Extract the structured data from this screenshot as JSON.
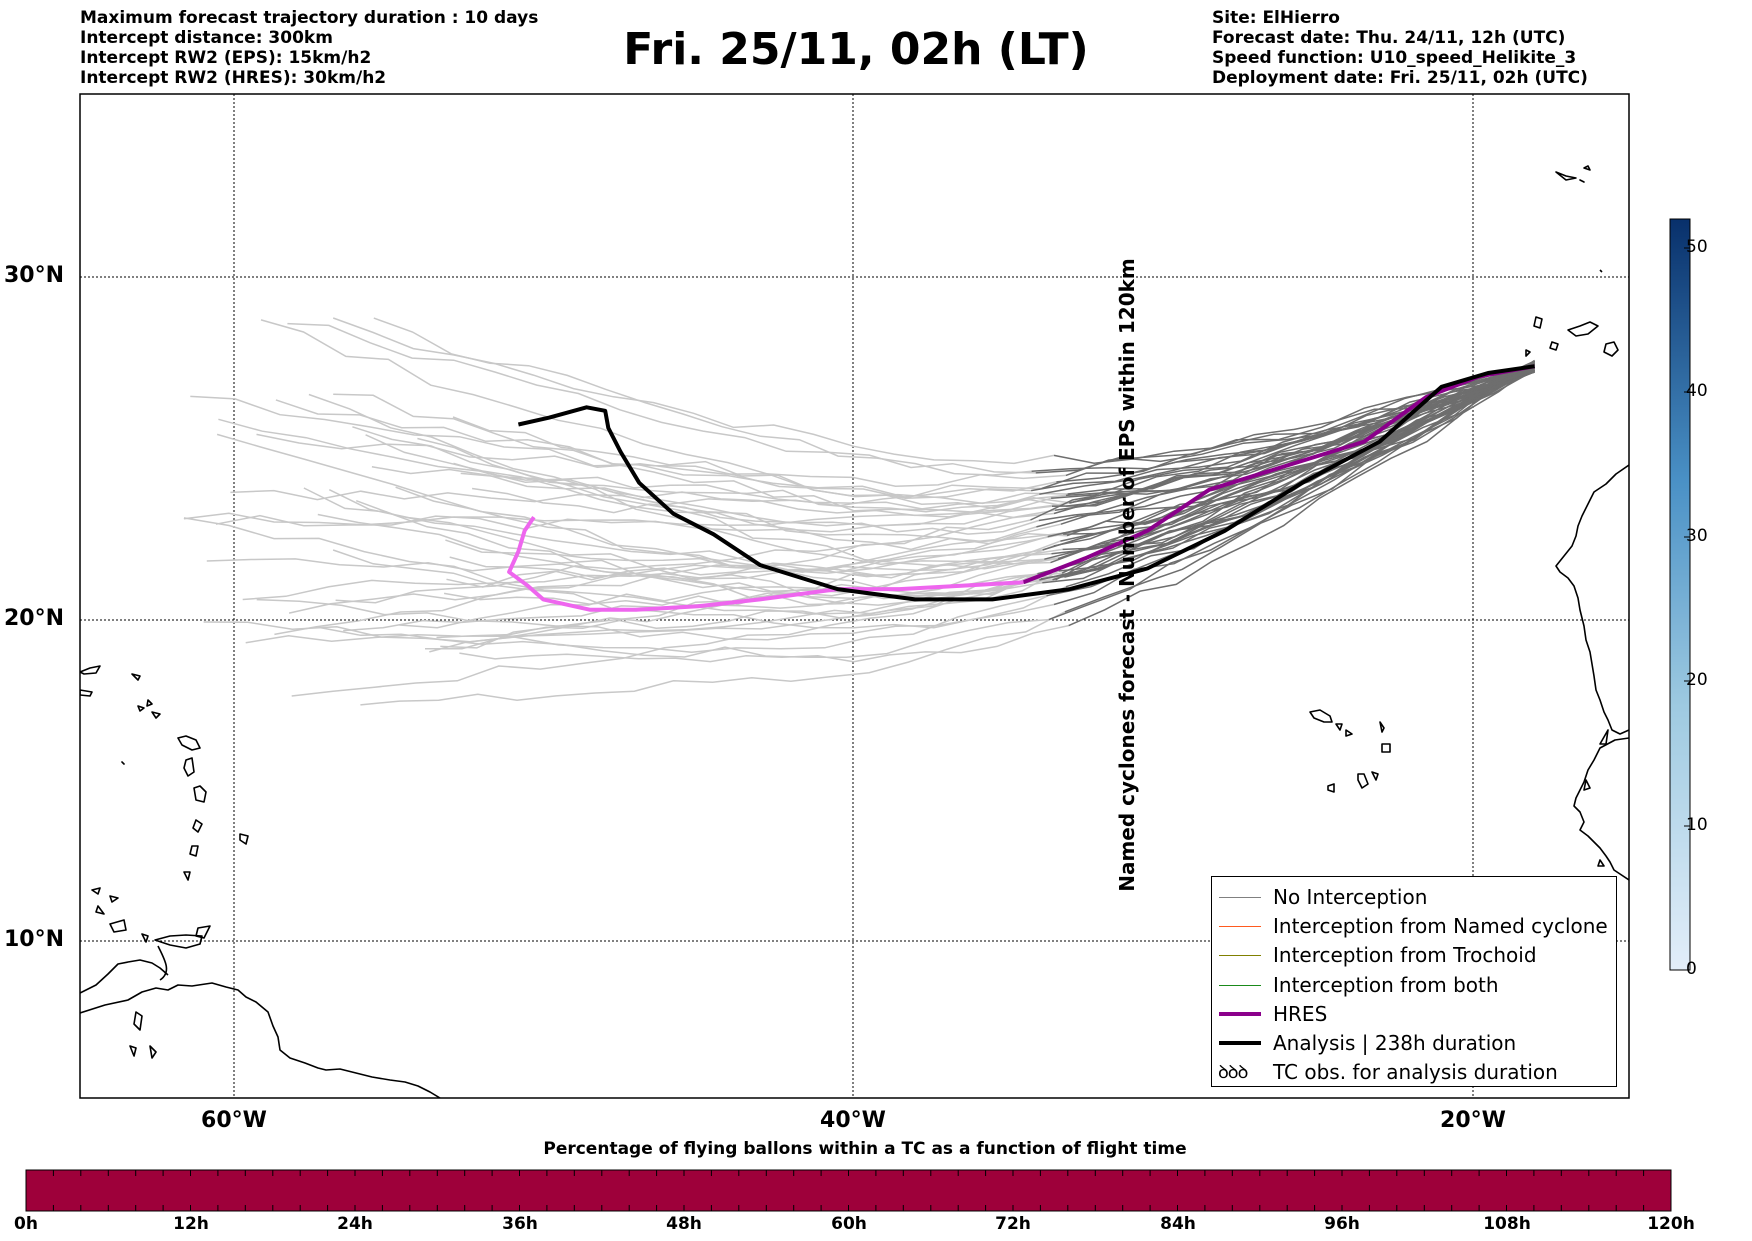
{
  "header": {
    "left_lines": [
      "Maximum forecast trajectory duration : 10 days",
      "Intercept distance: 300km",
      "Intercept RW2 (EPS):  15km/h2",
      "Intercept RW2 (HRES): 30km/h2"
    ],
    "title": "Fri. 25/11, 02h (LT)",
    "right_lines": [
      "Site: ElHierro",
      "Forecast date: Thu. 24/11, 12h (UTC)",
      "Speed function: U10_speed_Helikite_3",
      "Deployment date: Fri. 25/11, 02h (UTC)"
    ]
  },
  "map": {
    "lat_labels": [
      "30°N",
      "20°N",
      "10°N"
    ],
    "lon_labels": [
      "60°W",
      "40°W",
      "20°W"
    ],
    "lat_range": [
      5.4,
      34.7
    ],
    "lon_range": [
      -65,
      -15
    ]
  },
  "legend": {
    "entries": [
      {
        "label": "No Interception",
        "color": "#808080",
        "style": "thin"
      },
      {
        "label": "Interception from Named cyclone",
        "color": "#ff5a1f",
        "style": "thin"
      },
      {
        "label": "Interception from Trochoid",
        "color": "#808000",
        "style": "thin"
      },
      {
        "label": "Interception from both",
        "color": "#1a8a1a",
        "style": "thin"
      },
      {
        "label": "HRES",
        "color": "#8b008b",
        "style": "thick"
      },
      {
        "label": "Analysis | 238h duration",
        "color": "#000000",
        "style": "thick"
      },
      {
        "label": "TC obs. for analysis duration",
        "color": "#000000",
        "style": "glyph",
        "glyph": "ꝺꝺꝺ"
      }
    ]
  },
  "colorbar": {
    "title": "Named cyclones forecast - Number of EPS within 120km",
    "ticks": [
      "0",
      "10",
      "20",
      "30",
      "40",
      "50"
    ],
    "range": [
      0,
      52
    ],
    "color_low": "#e3eef9",
    "color_high": "#08306b"
  },
  "strip": {
    "title": "Percentage of flying ballons within a TC as a function of flight time",
    "ticks": [
      "0h",
      "12h",
      "24h",
      "36h",
      "48h",
      "60h",
      "72h",
      "84h",
      "96h",
      "108h",
      "120h"
    ],
    "color": "#9e003a"
  },
  "trajectories": {
    "analysis": [
      [
        -18.0,
        27.4
      ],
      [
        -19.5,
        27.2
      ],
      [
        -21.0,
        26.8
      ],
      [
        -23.0,
        25.2
      ],
      [
        -25.5,
        24.0
      ],
      [
        -28.0,
        22.6
      ],
      [
        -30.5,
        21.5
      ],
      [
        -33.0,
        20.9
      ],
      [
        -35.5,
        20.6
      ],
      [
        -38.0,
        20.6
      ],
      [
        -40.5,
        20.9
      ],
      [
        -43.0,
        21.6
      ],
      [
        -44.5,
        22.5
      ],
      [
        -45.8,
        23.1
      ],
      [
        -46.9,
        24.0
      ],
      [
        -47.5,
        24.9
      ],
      [
        -47.9,
        25.6
      ],
      [
        -48.0,
        26.1
      ],
      [
        -48.6,
        26.2
      ],
      [
        -49.8,
        25.9
      ],
      [
        -50.8,
        25.7
      ]
    ],
    "hres": [
      [
        -18.0,
        27.4
      ],
      [
        -19.8,
        27.1
      ],
      [
        -21.5,
        26.5
      ],
      [
        -23.5,
        25.2
      ],
      [
        -26.0,
        24.5
      ],
      [
        -28.5,
        23.8
      ],
      [
        -30.5,
        22.6
      ],
      [
        -32.5,
        21.8
      ],
      [
        -34.5,
        21.1
      ],
      [
        -36.5,
        21.0
      ],
      [
        -38.5,
        20.9
      ],
      [
        -40.5,
        20.9
      ],
      [
        -43.0,
        20.6
      ],
      [
        -45.0,
        20.4
      ],
      [
        -47.0,
        20.3
      ],
      [
        -48.5,
        20.3
      ],
      [
        -50.0,
        20.6
      ],
      [
        -50.5,
        21.0
      ],
      [
        -51.1,
        21.4
      ],
      [
        -50.8,
        22.0
      ],
      [
        -50.6,
        22.6
      ],
      [
        -50.3,
        23.0
      ]
    ]
  }
}
